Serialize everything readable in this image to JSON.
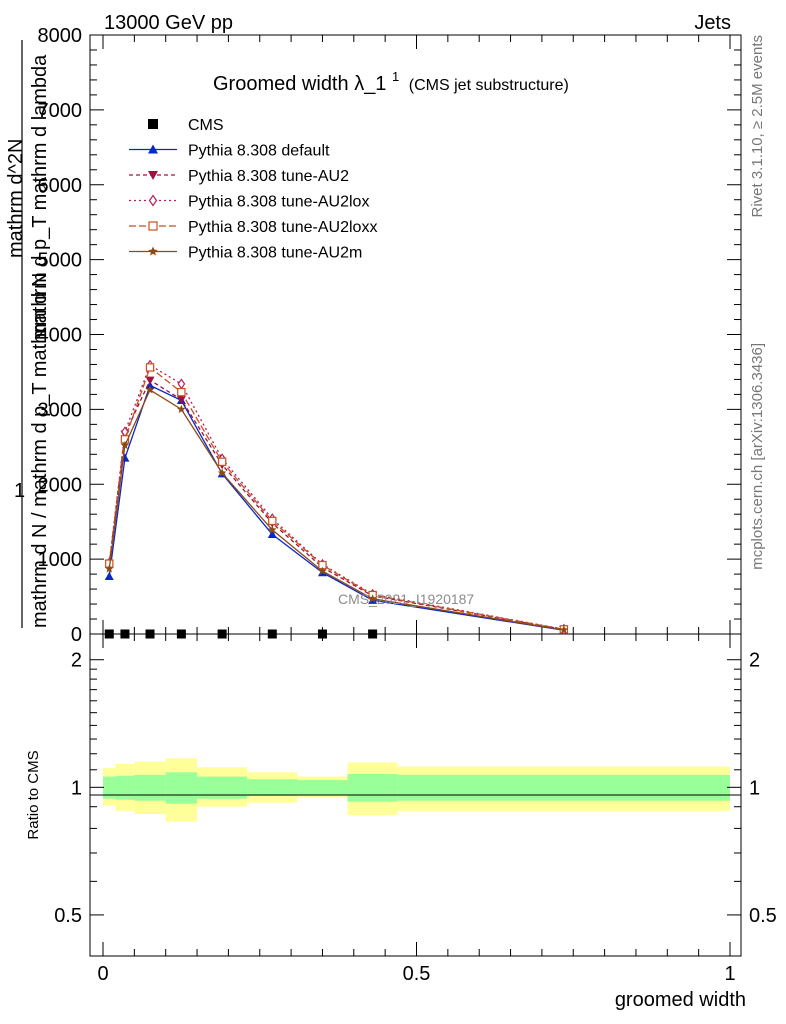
{
  "header": {
    "left": "13000 GeV pp",
    "right": "Jets"
  },
  "side": {
    "rivet": "Rivet 3.1.10, ≥ 2.5M events",
    "mcplots": "mcplots.cern.ch [arXiv:1306.3436]"
  },
  "chart_data": {
    "type": "line",
    "title": "Groomed width",
    "title_symbol": "λ_1",
    "title_sup": "1",
    "title_sub": "(CMS jet substructure)",
    "watermark": "CMS_2021_I1920187",
    "xlabel": "groomed width",
    "ylabel_main": {
      "numerator": "1",
      "denominator": "mathrm d N / mathrm d p_T mathrm d N",
      "right_num": "mathrm d^2N",
      "right_den": "mathrm d p_T mathrm d lambda"
    },
    "ylabel_ratio": "Ratio to CMS",
    "xlim": [
      0,
      1
    ],
    "ylim": [
      0,
      8000
    ],
    "ratio_ylim": [
      0.4,
      2.3
    ],
    "x_ticks": [
      "0",
      "0.5",
      "1"
    ],
    "y_ticks": [
      "0",
      "1000",
      "2000",
      "3000",
      "4000",
      "5000",
      "6000",
      "7000",
      "8000"
    ],
    "ratio_ticks": [
      "0.5",
      "1",
      "2"
    ],
    "data_points": {
      "name": "CMS",
      "x": [
        0.01,
        0.035,
        0.075,
        0.125,
        0.19,
        0.27,
        0.35,
        0.43
      ],
      "y": [
        0,
        0,
        0,
        0,
        0,
        0,
        0,
        0
      ]
    },
    "series": [
      {
        "name": "Pythia 8.308 default",
        "color": "#0a28c8",
        "dash": "",
        "marker": "triangle-up",
        "x": [
          0.01,
          0.035,
          0.075,
          0.125,
          0.19,
          0.27,
          0.35,
          0.43,
          0.735
        ],
        "values": [
          770,
          2350,
          3320,
          3120,
          2140,
          1330,
          820,
          450,
          50
        ]
      },
      {
        "name": "Pythia 8.308 tune-AU2",
        "color": "#a0103c",
        "dash": "4,3",
        "marker": "triangle-down",
        "x": [
          0.01,
          0.035,
          0.075,
          0.125,
          0.19,
          0.27,
          0.35,
          0.43,
          0.735
        ],
        "values": [
          930,
          2670,
          3390,
          3130,
          2260,
          1480,
          890,
          510,
          60
        ]
      },
      {
        "name": "Pythia 8.308 tune-AU2lox",
        "color": "#b81c5c",
        "dash": "2,3",
        "marker": "diamond",
        "x": [
          0.01,
          0.035,
          0.075,
          0.125,
          0.19,
          0.27,
          0.35,
          0.43,
          0.735
        ],
        "values": [
          950,
          2700,
          3590,
          3340,
          2340,
          1540,
          930,
          530,
          65
        ]
      },
      {
        "name": "Pythia 8.308 tune-AU2loxx",
        "color": "#c8501e",
        "dash": "7,3",
        "marker": "square",
        "x": [
          0.01,
          0.035,
          0.075,
          0.125,
          0.19,
          0.27,
          0.35,
          0.43,
          0.735
        ],
        "values": [
          940,
          2600,
          3560,
          3230,
          2300,
          1510,
          920,
          520,
          62
        ]
      },
      {
        "name": "Pythia 8.308 tune-AU2m",
        "color": "#8c4a14",
        "dash": "",
        "marker": "star",
        "x": [
          0.01,
          0.035,
          0.075,
          0.125,
          0.19,
          0.27,
          0.35,
          0.43,
          0.735
        ],
        "values": [
          870,
          2520,
          3260,
          3000,
          2150,
          1390,
          840,
          470,
          55
        ]
      }
    ],
    "ratio_bands": {
      "bins": [
        0,
        0.02,
        0.05,
        0.1,
        0.15,
        0.23,
        0.31,
        0.39,
        0.47,
        1.0
      ],
      "inner_lo": [
        0.94,
        0.935,
        0.93,
        0.915,
        0.94,
        0.955,
        0.96,
        0.925,
        0.93
      ],
      "inner_hi": [
        1.06,
        1.065,
        1.07,
        1.085,
        1.06,
        1.045,
        1.04,
        1.075,
        1.07
      ],
      "outer_lo": [
        0.905,
        0.88,
        0.865,
        0.83,
        0.9,
        0.92,
        0.945,
        0.86,
        0.88
      ],
      "outer_hi": [
        1.11,
        1.135,
        1.15,
        1.17,
        1.115,
        1.085,
        1.06,
        1.145,
        1.12
      ],
      "inner_color": "#99ff99",
      "outer_color": "#ffff99"
    }
  }
}
